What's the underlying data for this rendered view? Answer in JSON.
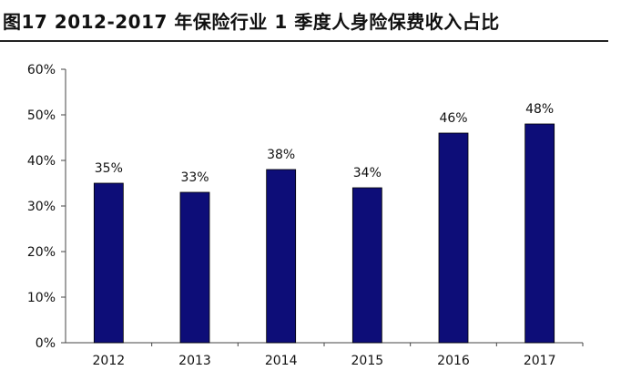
{
  "figure": {
    "title": "图17 2012-2017 年保险行业 1 季度人身险保费收入占比"
  },
  "chart_data": {
    "type": "bar",
    "title": "图17 2012-2017 年保险行业 1 季度人身险保费收入占比",
    "xlabel": "",
    "ylabel": "",
    "categories": [
      "2012",
      "2013",
      "2014",
      "2015",
      "2016",
      "2017"
    ],
    "values": [
      35,
      33,
      38,
      34,
      46,
      48
    ],
    "data_labels": [
      "35%",
      "33%",
      "38%",
      "34%",
      "46%",
      "48%"
    ],
    "ylim": [
      0,
      60
    ],
    "yticks": [
      0,
      10,
      20,
      30,
      40,
      50,
      60
    ],
    "ytick_labels": [
      "0%",
      "10%",
      "20%",
      "30%",
      "40%",
      "50%",
      "60%"
    ],
    "bar_color": "#0d0d78",
    "grid": false,
    "legend": "none"
  }
}
